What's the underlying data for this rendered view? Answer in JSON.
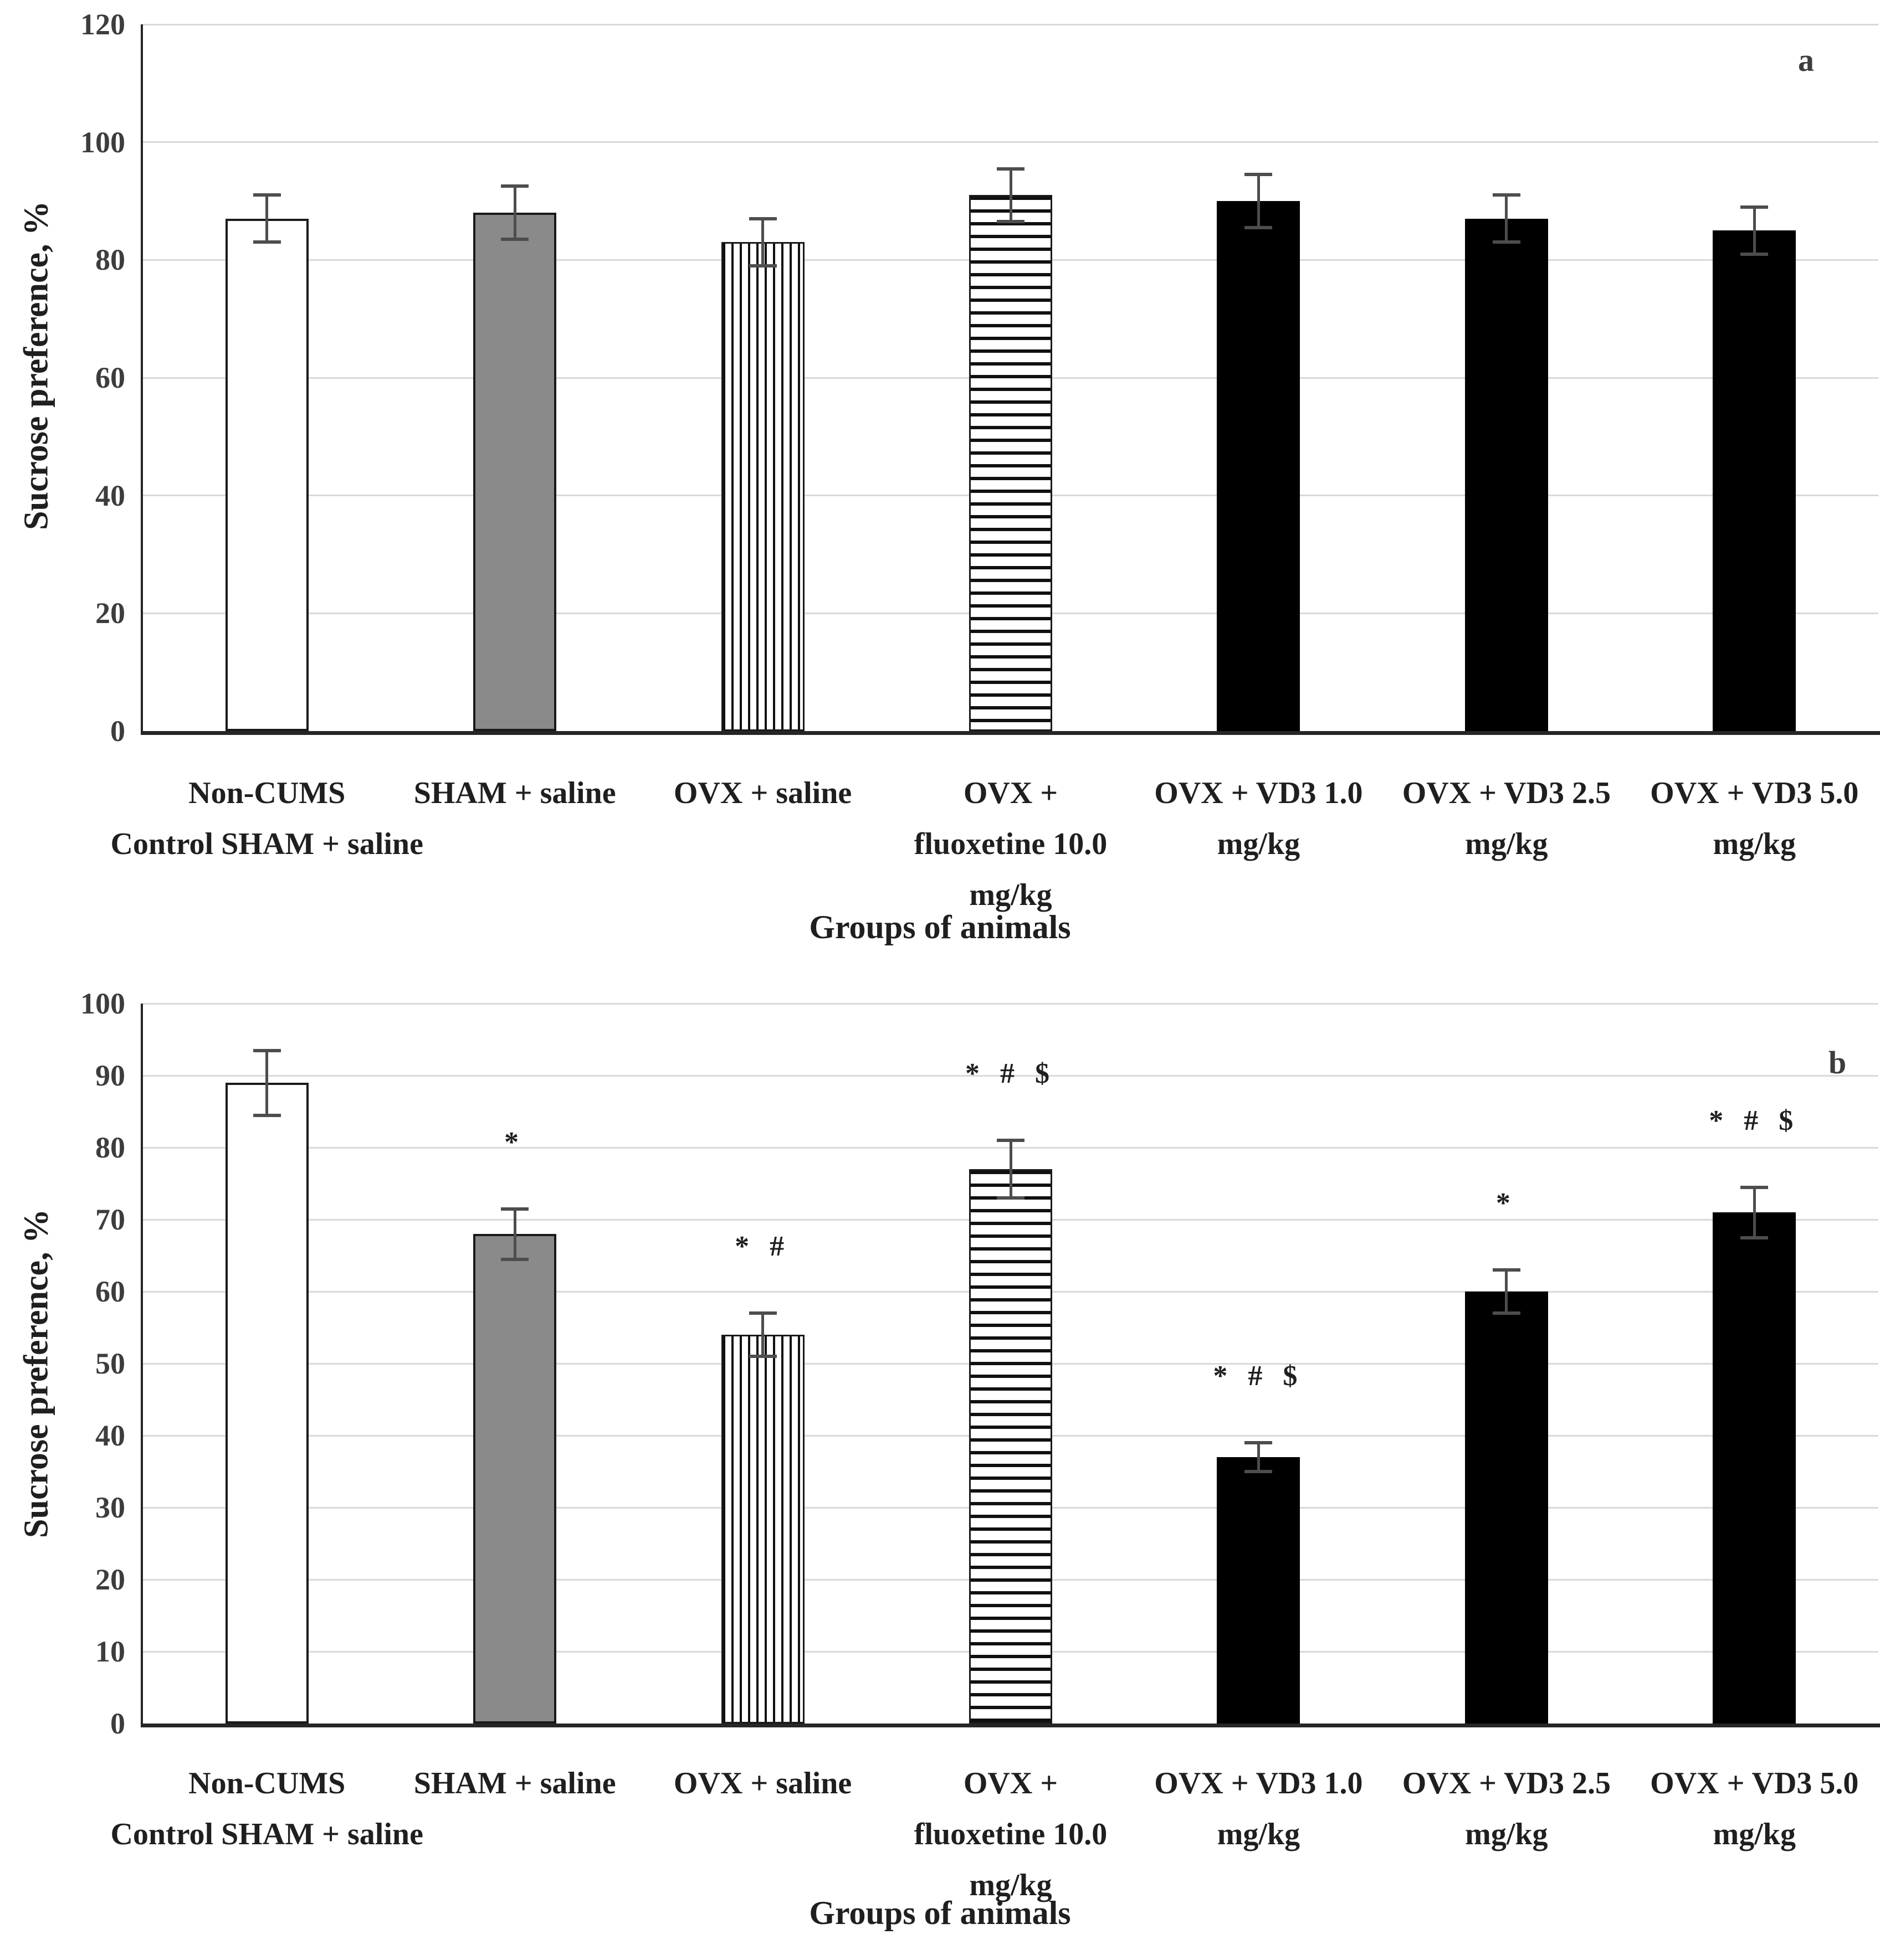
{
  "figure_caption": "Sucrose preference test, two panels",
  "colors": {
    "bar_black": "#000000",
    "bar_gray": "#8a8a8a",
    "bar_white": "#ffffff",
    "bar_border": "#1a1a1a",
    "gridline": "#d9d9d9",
    "axis_line": "#262626",
    "error_bar": "#4d4d4d",
    "tick_text": "#3d3d3d",
    "label_text": "#1f1f1f"
  },
  "chart_data": [
    {
      "type": "bar",
      "panel_label": "a",
      "xlabel": "Groups of animals",
      "ylabel": "Sucrose preference, %",
      "ylim": [
        0,
        120
      ],
      "yticks": [
        0,
        20,
        40,
        60,
        80,
        100,
        120
      ],
      "grid": true,
      "legend_position": "none",
      "categories": [
        "Non-CUMS Control SHAM + saline",
        "SHAM + saline",
        "OVX + saline",
        "OVX + fluoxetine 10.0 mg/kg",
        "OVX + VD3 1.0 mg/kg",
        "OVX + VD3 2.5 mg/kg",
        "OVX + VD3 5.0 mg/kg"
      ],
      "category_label_lines": [
        [
          "Non-CUMS",
          "Control SHAM + saline"
        ],
        [
          "SHAM + saline"
        ],
        [
          "OVX + saline"
        ],
        [
          "OVX +",
          "fluoxetine 10.0",
          "mg/kg"
        ],
        [
          "OVX + VD3 1.0",
          "mg/kg"
        ],
        [
          "OVX + VD3 2.5",
          "mg/kg"
        ],
        [
          "OVX + VD3 5.0",
          "mg/kg"
        ]
      ],
      "series": [
        {
          "name": "Sucrose preference, %",
          "values": [
            87,
            88,
            83,
            91,
            90,
            87,
            85
          ],
          "errors": [
            4,
            4.5,
            4,
            4.5,
            4.5,
            4,
            4
          ]
        }
      ],
      "significance": [
        "",
        "",
        "",
        "",
        "",
        "",
        ""
      ],
      "bar_styles": [
        "white",
        "gray",
        "vertical-stripes",
        "horizontal-stripes",
        "black",
        "black",
        "black"
      ]
    },
    {
      "type": "bar",
      "panel_label": "b",
      "xlabel": "Groups of animals",
      "ylabel": "Sucrose preference, %",
      "ylim": [
        0,
        100
      ],
      "yticks": [
        0,
        10,
        20,
        30,
        40,
        50,
        60,
        70,
        80,
        90,
        100
      ],
      "grid": true,
      "legend_position": "none",
      "categories": [
        "Non-CUMS Control SHAM + saline",
        "SHAM + saline",
        "OVX + saline",
        "OVX + fluoxetine 10.0 mg/kg",
        "OVX + VD3 1.0 mg/kg",
        "OVX + VD3 2.5 mg/kg",
        "OVX + VD3 5.0 mg/kg"
      ],
      "category_label_lines": [
        [
          "Non-CUMS",
          "Control SHAM + saline"
        ],
        [
          "SHAM + saline"
        ],
        [
          "OVX + saline"
        ],
        [
          "OVX +",
          "fluoxetine 10.0",
          "mg/kg"
        ],
        [
          "OVX + VD3 1.0",
          "mg/kg"
        ],
        [
          "OVX + VD3 2.5",
          "mg/kg"
        ],
        [
          "OVX + VD3 5.0",
          "mg/kg"
        ]
      ],
      "series": [
        {
          "name": "Sucrose preference, %",
          "values": [
            89,
            68,
            54,
            77,
            37,
            60,
            71
          ],
          "errors": [
            4.5,
            3.5,
            3,
            4,
            2,
            3,
            3.5
          ]
        }
      ],
      "significance": [
        "",
        "*",
        "* #",
        "* # $",
        "* # $",
        "*",
        "* # $"
      ],
      "bar_styles": [
        "white",
        "gray",
        "vertical-stripes",
        "horizontal-stripes",
        "black",
        "black",
        "black"
      ]
    }
  ]
}
